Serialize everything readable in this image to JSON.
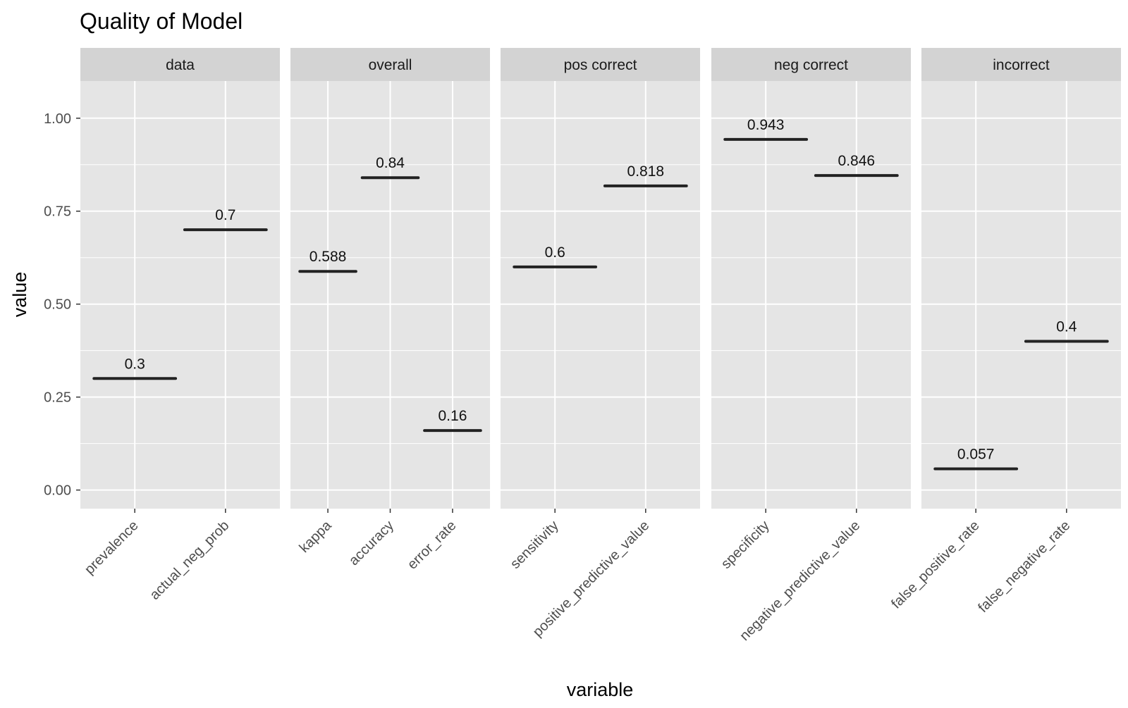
{
  "chart_data": {
    "type": "facet-crossbar",
    "title": "Quality of Model",
    "xlabel": "variable",
    "ylabel": "value",
    "ylim": [
      -0.05,
      1.1
    ],
    "y_ticks": [
      0,
      0.25,
      0.5,
      0.75,
      1.0
    ],
    "y_tick_labels": [
      "0.00",
      "0.25",
      "0.50",
      "0.75",
      "1.00"
    ],
    "grid": true,
    "panel_color": "#e5e5e5",
    "strip_color": "#d3d3d3",
    "grid_color": "#ffffff",
    "mark_color": "#222222",
    "facets": [
      {
        "name": "data",
        "categories": [
          "prevalence",
          "actual_neg_prob"
        ],
        "values": [
          0.3,
          0.7
        ],
        "labels": [
          "0.3",
          "0.7"
        ]
      },
      {
        "name": "overall",
        "categories": [
          "kappa",
          "accuracy",
          "error_rate"
        ],
        "values": [
          0.588,
          0.84,
          0.16
        ],
        "labels": [
          "0.588",
          "0.84",
          "0.16"
        ]
      },
      {
        "name": "pos correct",
        "categories": [
          "sensitivity",
          "positive_predictive_value"
        ],
        "values": [
          0.6,
          0.818
        ],
        "labels": [
          "0.6",
          "0.818"
        ]
      },
      {
        "name": "neg correct",
        "categories": [
          "specificity",
          "negative_predictive_value"
        ],
        "values": [
          0.943,
          0.846
        ],
        "labels": [
          "0.943",
          "0.846"
        ]
      },
      {
        "name": "incorrect",
        "categories": [
          "false_positive_rate",
          "false_negative_rate"
        ],
        "values": [
          0.057,
          0.4
        ],
        "labels": [
          "0.057",
          "0.4"
        ]
      }
    ]
  }
}
